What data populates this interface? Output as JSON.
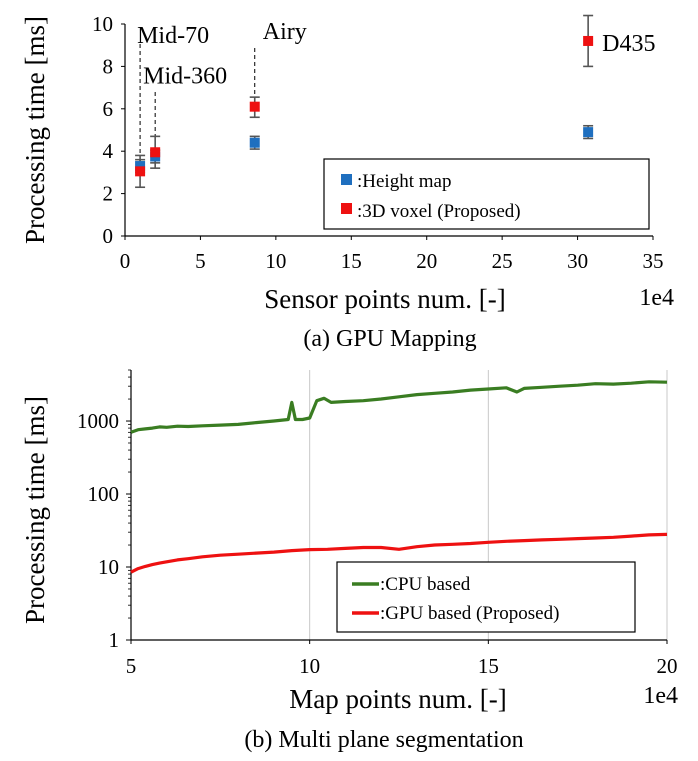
{
  "chart_data": [
    {
      "type": "scatter",
      "caption": "(a) GPU Mapping",
      "xlabel": "Sensor points num. [-]",
      "xunit_exponent": "1e4",
      "ylabel": "Processing time [ms]",
      "xlim": [
        0,
        35
      ],
      "ylim": [
        0,
        10
      ],
      "xticks": [
        "0",
        "5",
        "10",
        "15",
        "20",
        "25",
        "30",
        "35"
      ],
      "yticks": [
        "0",
        "2",
        "4",
        "6",
        "8",
        "10"
      ],
      "legend": [
        {
          "name": ":Height map",
          "color": "#1f6fbf"
        },
        {
          "name": ":3D voxel  (Proposed)",
          "color": "#ee1111"
        }
      ],
      "series": [
        {
          "name": ":Height map",
          "color": "#1f6fbf",
          "points": [
            {
              "x": 1.0,
              "y": 3.3,
              "lo": 3.0,
              "hi": 3.6
            },
            {
              "x": 2.0,
              "y": 3.75,
              "lo": 3.45,
              "hi": 4.05
            },
            {
              "x": 8.6,
              "y": 4.4,
              "lo": 4.1,
              "hi": 4.7
            },
            {
              "x": 30.7,
              "y": 4.9,
              "lo": 4.6,
              "hi": 5.2
            }
          ]
        },
        {
          "name": ":3D voxel  (Proposed)",
          "color": "#ee1111",
          "points": [
            {
              "x": 1.0,
              "y": 3.05,
              "lo": 2.3,
              "hi": 3.8
            },
            {
              "x": 2.0,
              "y": 3.95,
              "lo": 3.2,
              "hi": 4.7
            },
            {
              "x": 8.6,
              "y": 6.1,
              "lo": 5.6,
              "hi": 6.55
            },
            {
              "x": 30.7,
              "y": 9.2,
              "lo": 8.0,
              "hi": 10.4
            }
          ]
        }
      ],
      "annotations": [
        {
          "text": "Mid-70",
          "x": 1.0,
          "y": 9.1
        },
        {
          "text": "Mid-360",
          "x": 2.0,
          "y": 7.2
        },
        {
          "text": "Airy",
          "x": 8.6,
          "y": 9.3
        },
        {
          "text": "D435",
          "x": 30.7,
          "y": 9.2
        }
      ]
    },
    {
      "type": "line",
      "caption": "(b) Multi plane segmentation",
      "xlabel": "Map points num. [-]",
      "xunit_exponent": "1e4",
      "ylabel": "Processing time [ms]",
      "yscale": "log",
      "xlim": [
        5,
        20
      ],
      "ylim": [
        1,
        5000
      ],
      "xticks": [
        "5",
        "10",
        "15",
        "20"
      ],
      "yticks": [
        "1",
        "10",
        "100",
        "1000"
      ],
      "legend": [
        {
          "name": ":CPU based",
          "color": "#3a7d22"
        },
        {
          "name": ":GPU based (Proposed)",
          "color": "#ee1111"
        }
      ],
      "series": [
        {
          "name": ":CPU based",
          "color": "#3a7d22",
          "x": [
            5.0,
            5.2,
            5.4,
            5.6,
            5.8,
            6.0,
            6.3,
            6.6,
            7.0,
            7.5,
            8.0,
            8.5,
            9.0,
            9.4,
            9.5,
            9.6,
            9.8,
            10.0,
            10.2,
            10.4,
            10.6,
            11.0,
            11.5,
            12.0,
            12.5,
            13.0,
            13.5,
            14.0,
            14.5,
            15.0,
            15.5,
            15.8,
            16.0,
            16.5,
            17.0,
            17.5,
            18.0,
            18.5,
            19.0,
            19.5,
            20.0
          ],
          "values": [
            700,
            760,
            780,
            800,
            830,
            820,
            850,
            840,
            860,
            880,
            900,
            950,
            1000,
            1050,
            1800,
            1050,
            1050,
            1100,
            1900,
            2050,
            1800,
            1850,
            1900,
            2000,
            2150,
            2300,
            2400,
            2500,
            2650,
            2750,
            2850,
            2500,
            2800,
            2900,
            3000,
            3100,
            3250,
            3200,
            3300,
            3450,
            3400
          ]
        },
        {
          "name": ":GPU based (Proposed)",
          "color": "#ee1111",
          "x": [
            5.0,
            5.2,
            5.4,
            5.6,
            5.8,
            6.0,
            6.3,
            6.6,
            7.0,
            7.5,
            8.0,
            8.5,
            9.0,
            9.5,
            10.0,
            10.5,
            11.0,
            11.5,
            12.0,
            12.5,
            13.0,
            13.5,
            14.0,
            14.5,
            15.0,
            15.5,
            16.0,
            16.5,
            17.0,
            17.5,
            18.0,
            18.5,
            19.0,
            19.5,
            20.0
          ],
          "values": [
            8.5,
            9.5,
            10.2,
            10.8,
            11.3,
            11.8,
            12.5,
            13.0,
            13.8,
            14.5,
            15.0,
            15.5,
            16.0,
            16.8,
            17.3,
            17.5,
            18.0,
            18.5,
            18.5,
            17.5,
            19.0,
            20.0,
            20.5,
            21.0,
            21.8,
            22.5,
            23.0,
            23.5,
            24.0,
            24.5,
            25.0,
            25.5,
            26.5,
            27.5,
            28.0
          ]
        }
      ]
    }
  ]
}
